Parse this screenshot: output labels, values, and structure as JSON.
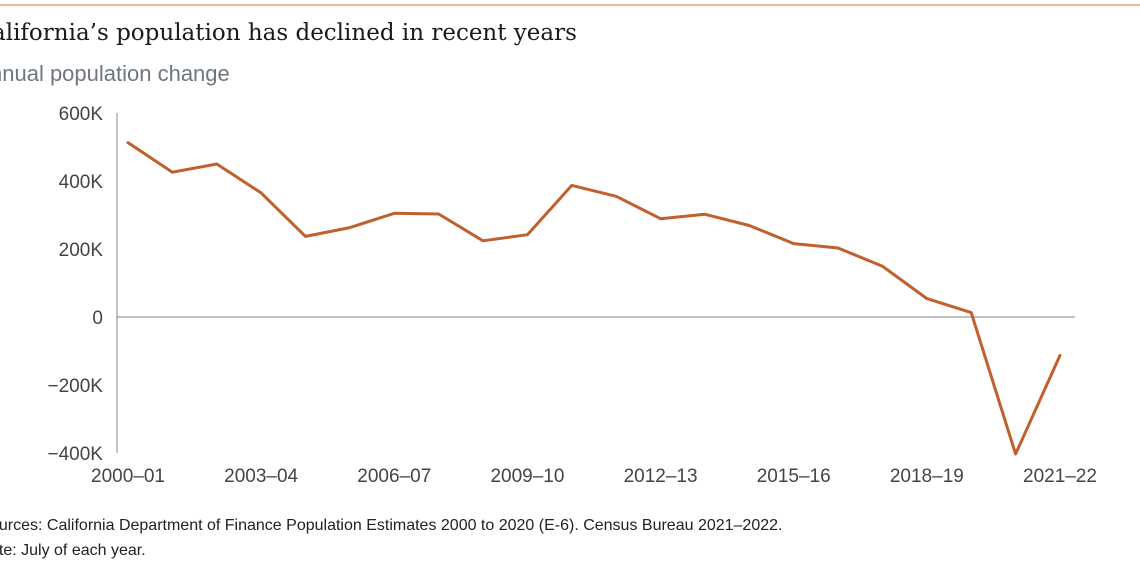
{
  "title": "alifornia’s population has declined in recent years",
  "subtitle": "nnual population change",
  "footer": {
    "sources": "ources: California Department of Finance Population Estimates 2000 to 2020 (E-6). Census Bureau 2021–2022.",
    "note": "ote: July of each year."
  },
  "colors": {
    "line": "#c0602e",
    "axis": "#999999",
    "text": "#444444"
  },
  "chart_data": {
    "type": "line",
    "title": "alifornia’s population has declined in recent years",
    "subtitle": "nnual population change",
    "xlabel": "",
    "ylabel": "",
    "ylim": [
      -400000,
      600000
    ],
    "yticks": [
      600000,
      400000,
      200000,
      0,
      -200000,
      -400000
    ],
    "ytick_labels": [
      "600K",
      "400K",
      "200K",
      "0",
      "−200K",
      "−400K"
    ],
    "xtick_labels": [
      "2000–01",
      "2003–04",
      "2006–07",
      "2009–10",
      "2012–13",
      "2015–16",
      "2018–19",
      "2021–22"
    ],
    "categories": [
      "2000–01",
      "2001–02",
      "2002–03",
      "2003–04",
      "2004–05",
      "2005–06",
      "2006–07",
      "2007–08",
      "2008–09",
      "2009–10",
      "2010–11",
      "2011–12",
      "2012–13",
      "2013–14",
      "2014–15",
      "2015–16",
      "2016–17",
      "2017–18",
      "2018–19",
      "2019–20",
      "2020–21",
      "2021–22"
    ],
    "values": [
      513000,
      426000,
      450000,
      365000,
      237000,
      263000,
      305000,
      303000,
      224000,
      242000,
      387000,
      355000,
      289000,
      302000,
      269000,
      216000,
      203000,
      149000,
      54000,
      13000,
      -403000,
      -113000
    ],
    "grid": false
  }
}
